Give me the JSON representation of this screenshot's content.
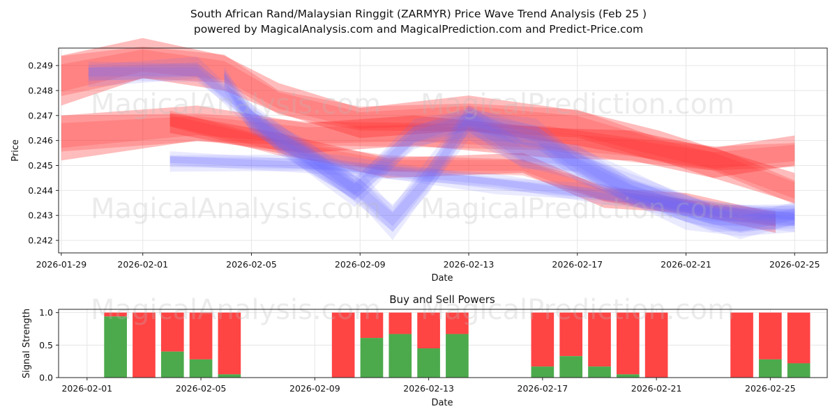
{
  "header": {
    "title_line1": "South African Rand/Malaysian Ringgit (ZARMYR) Price Wave Trend Analysis (Feb 25 )",
    "title_line2": "powered by MagicalAnalysis.com and MagicalPrediction.com and Predict-Price.com"
  },
  "watermarks": [
    "MagicalAnalysis.com",
    "MagicalPrediction.com"
  ],
  "colors": {
    "sell": "#ff4444",
    "buy": "#4caa4c",
    "red_band": "#ff2020",
    "blue_band": "#6a6aff"
  },
  "chart_data": [
    {
      "type": "line",
      "title": "",
      "xlabel": "Date",
      "ylabel": "Price",
      "ylim": [
        0.2415,
        0.2497
      ],
      "xlim": [
        "2026-01-28.9",
        "2026-02-26.2"
      ],
      "grid": true,
      "yticks": [
        0.242,
        0.243,
        0.244,
        0.245,
        0.246,
        0.247,
        0.248,
        0.249
      ],
      "ytick_labels": [
        "0.242",
        "0.243",
        "0.244",
        "0.245",
        "0.246",
        "0.247",
        "0.248",
        "0.249"
      ],
      "xticks": [
        "2026-01-29",
        "2026-02-01",
        "2026-02-05",
        "2026-02-09",
        "2026-02-13",
        "2026-02-17",
        "2026-02-21",
        "2026-02-25"
      ],
      "series": [
        {
          "name": "red-wave-upper",
          "x": [
            0,
            3,
            6,
            8,
            11,
            15,
            19,
            22,
            24,
            27
          ],
          "center": [
            0.2485,
            0.2492,
            0.2488,
            0.2476,
            0.2468,
            0.247,
            0.2466,
            0.2457,
            0.2452,
            0.244
          ],
          "half_width": [
            0.001,
            0.0008,
            0.0007,
            0.0006,
            0.0006,
            0.0007,
            0.0007,
            0.0006,
            0.0006,
            0.0006
          ]
        },
        {
          "name": "red-wave-lower",
          "x": [
            0,
            5,
            9,
            13,
            18,
            21,
            24,
            27
          ],
          "center": [
            0.2462,
            0.2466,
            0.2462,
            0.2463,
            0.246,
            0.2457,
            0.2452,
            0.2455
          ],
          "half_width": [
            0.0009,
            0.0007,
            0.0006,
            0.0006,
            0.0006,
            0.0006,
            0.0006,
            0.0006
          ]
        },
        {
          "name": "red-wave-down",
          "x": [
            4,
            8,
            12,
            17,
            20,
            23,
            26.3
          ],
          "center": [
            0.2468,
            0.2458,
            0.245,
            0.245,
            0.2438,
            0.2434,
            0.2428
          ],
          "half_width": [
            0.0004,
            0.0004,
            0.0004,
            0.0004,
            0.0004,
            0.0004,
            0.0004
          ]
        },
        {
          "name": "blue-wave-main",
          "x": [
            1,
            5,
            7,
            8,
            10.8,
            13,
            15,
            17.5,
            19,
            21,
            24,
            27
          ],
          "center": [
            0.2487,
            0.2488,
            0.247,
            0.246,
            0.244,
            0.2462,
            0.2468,
            0.2462,
            0.245,
            0.244,
            0.243,
            0.2428
          ],
          "half_width": [
            0.0004,
            0.0004,
            0.0004,
            0.0005,
            0.0005,
            0.0005,
            0.0005,
            0.0005,
            0.0005,
            0.0005,
            0.0005,
            0.0004
          ]
        },
        {
          "name": "blue-wave-dip",
          "x": [
            6,
            7,
            9,
            11,
            12.2,
            13.5,
            15,
            17,
            19,
            21,
            23,
            25,
            27
          ],
          "center": [
            0.2485,
            0.2468,
            0.2455,
            0.244,
            0.2428,
            0.2445,
            0.2468,
            0.2455,
            0.2452,
            0.244,
            0.2432,
            0.2426,
            0.243
          ],
          "half_width": [
            0.0004,
            0.0005,
            0.0005,
            0.0006,
            0.0006,
            0.0006,
            0.0006,
            0.0006,
            0.0006,
            0.0006,
            0.0006,
            0.0005,
            0.0005
          ]
        },
        {
          "name": "blue-wave-flat",
          "x": [
            4,
            10,
            16,
            20,
            24,
            27
          ],
          "center": [
            0.2452,
            0.245,
            0.2443,
            0.2438,
            0.2432,
            0.243
          ],
          "half_width": [
            0.0003,
            0.0003,
            0.0003,
            0.0003,
            0.0003,
            0.0003
          ]
        }
      ]
    },
    {
      "type": "bar",
      "title": "Buy and Sell Powers",
      "xlabel": "Date",
      "ylabel": "Signal Strength",
      "ylim": [
        0,
        1.05
      ],
      "yticks": [
        0.0,
        0.5,
        1.0
      ],
      "ytick_labels": [
        "0.0",
        "0.5",
        "1.0"
      ],
      "xticks": [
        "2026-02-01",
        "2026-02-05",
        "2026-02-09",
        "2026-02-13",
        "2026-02-17",
        "2026-02-21",
        "2026-02-25"
      ],
      "series": [
        {
          "name": "Buy",
          "color": "#4caa4c"
        },
        {
          "name": "Sell",
          "color": "#ff4444"
        }
      ],
      "bars": [
        {
          "day": 2,
          "buy": 0.94
        },
        {
          "day": 3,
          "buy": 0.0
        },
        {
          "day": 4,
          "buy": 0.4
        },
        {
          "day": 5,
          "buy": 0.28
        },
        {
          "day": 6,
          "buy": 0.05
        },
        {
          "day": 10,
          "buy": 0.0
        },
        {
          "day": 11,
          "buy": 0.61
        },
        {
          "day": 12,
          "buy": 0.67
        },
        {
          "day": 13,
          "buy": 0.45
        },
        {
          "day": 14,
          "buy": 0.67
        },
        {
          "day": 17,
          "buy": 0.17
        },
        {
          "day": 18,
          "buy": 0.33
        },
        {
          "day": 19,
          "buy": 0.17
        },
        {
          "day": 20,
          "buy": 0.05
        },
        {
          "day": 21,
          "buy": 0.0
        },
        {
          "day": 24,
          "buy": 0.0
        },
        {
          "day": 25,
          "buy": 0.28
        },
        {
          "day": 26,
          "buy": 0.22
        }
      ]
    }
  ]
}
